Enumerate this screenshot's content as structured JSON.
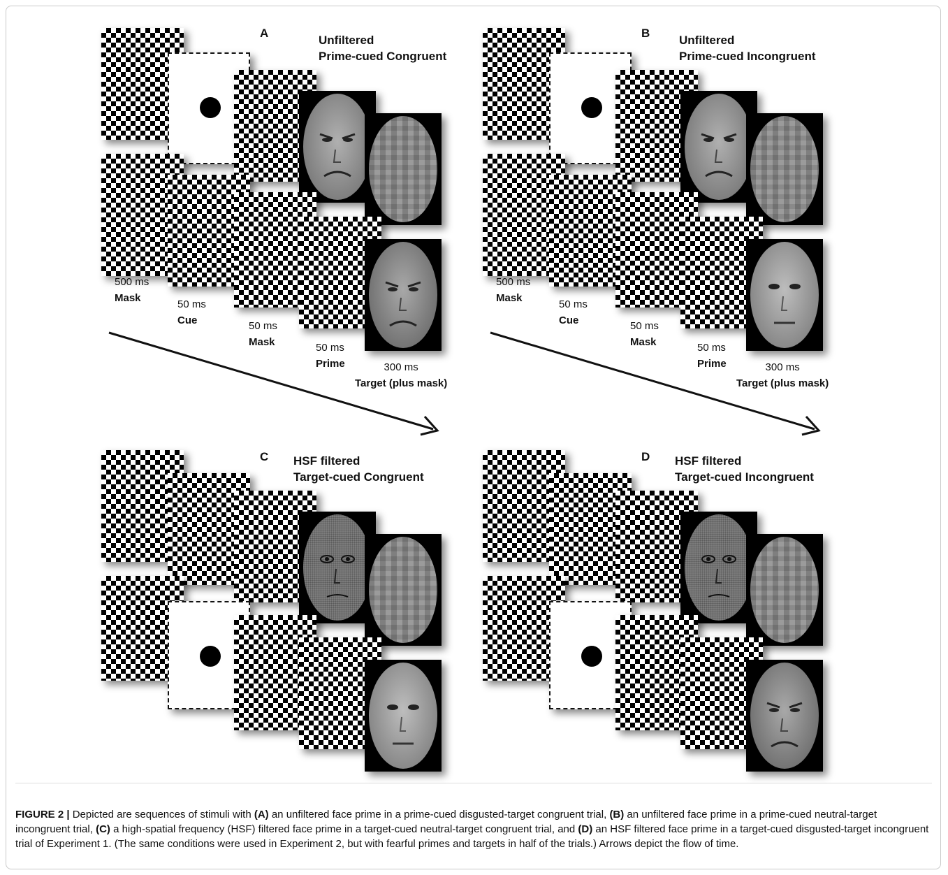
{
  "panels": [
    {
      "letter": "A",
      "title_line1": "Unfiltered",
      "title_line2": "Prime-cued Congruent",
      "prime_face": "disgusted",
      "target_face": "disgusted",
      "cue_position": "before-prime",
      "timings": [
        {
          "ms": "500 ms",
          "name": "Mask"
        },
        {
          "ms": "50 ms",
          "name": "Cue"
        },
        {
          "ms": "50 ms",
          "name": "Mask"
        },
        {
          "ms": "50 ms",
          "name": "Prime"
        },
        {
          "ms": "300 ms",
          "name": "Target (plus mask)"
        }
      ]
    },
    {
      "letter": "B",
      "title_line1": "Unfiltered",
      "title_line2": "Prime-cued Incongruent",
      "prime_face": "disgusted",
      "target_face": "neutral",
      "cue_position": "before-prime",
      "timings": [
        {
          "ms": "500 ms",
          "name": "Mask"
        },
        {
          "ms": "50 ms",
          "name": "Cue"
        },
        {
          "ms": "50 ms",
          "name": "Mask"
        },
        {
          "ms": "50 ms",
          "name": "Prime"
        },
        {
          "ms": "300 ms",
          "name": "Target (plus mask)"
        }
      ]
    },
    {
      "letter": "C",
      "title_line1": "HSF filtered",
      "title_line2": "Target-cued Congruent",
      "prime_face": "hsf-neutral",
      "target_face": "neutral",
      "cue_position": "before-target"
    },
    {
      "letter": "D",
      "title_line1": "HSF filtered",
      "title_line2": "Target-cued Incongruent",
      "prime_face": "hsf-neutral",
      "target_face": "disgusted",
      "cue_position": "before-target"
    }
  ],
  "caption": {
    "figure_label": "FIGURE 2 |",
    "t1": " Depicted are sequences of stimuli with ",
    "a": "(A)",
    "t2": " an unfiltered face prime in a prime-cued disgusted-target congruent trial, ",
    "b": "(B)",
    "t3": " an unfiltered face prime in a prime-cued neutral-target incongruent trial, ",
    "c": "(C)",
    "t4": " a high-spatial frequency (HSF) filtered face prime in a target-cued neutral-target congruent trial, and ",
    "d": "(D)",
    "t5": " an HSF filtered face prime in a target-cued disgusted-target incongruent trial of Experiment 1. (The same conditions were used in Experiment 2, but with fearful primes and targets in half of the trials.) Arrows depict the flow of time."
  },
  "colors": {
    "mask_black": "#000000",
    "face_gray": "#8a8a8a",
    "page_bg": "#ffffff"
  }
}
